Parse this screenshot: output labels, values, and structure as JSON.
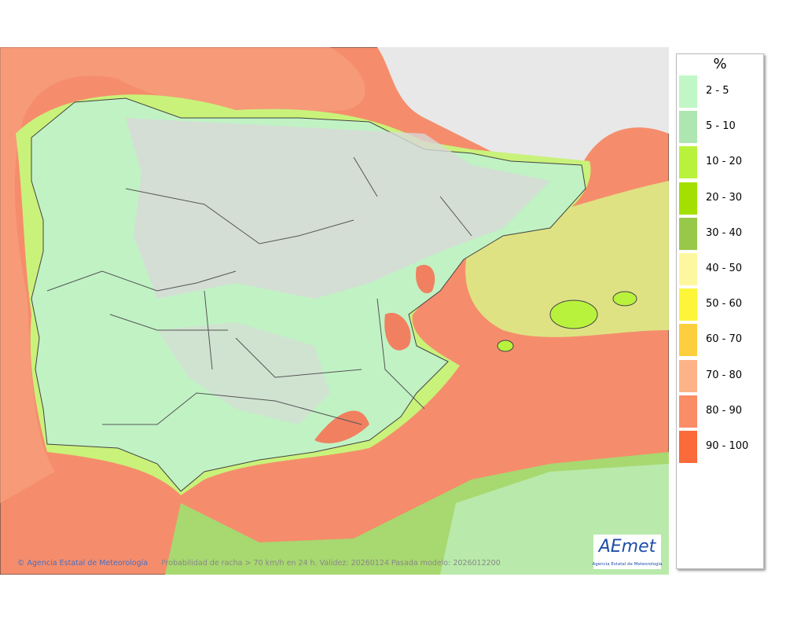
{
  "map": {
    "credit": "© Agencia Estatal de Meteorología",
    "caption": "Probabilidad de racha > 70 km/h en 24 h. Validez: 20260124 Pasada modelo: 2026012200"
  },
  "logo": {
    "text": "AEmet",
    "subtitle": "Agencia Estatal de Meteorología"
  },
  "legend": {
    "unit": "%",
    "items": [
      {
        "label": "2 - 5",
        "color": "#c1f7c6"
      },
      {
        "label": "5 - 10",
        "color": "#aee6b2"
      },
      {
        "label": "10 - 20",
        "color": "#b9f23c"
      },
      {
        "label": "20 - 30",
        "color": "#a3df00"
      },
      {
        "label": "30 - 40",
        "color": "#98c84a"
      },
      {
        "label": "40 - 50",
        "color": "#fdf8a0"
      },
      {
        "label": "50 - 60",
        "color": "#fdf53a"
      },
      {
        "label": "60 - 70",
        "color": "#fdcf3e"
      },
      {
        "label": "70 - 80",
        "color": "#fcb387"
      },
      {
        "label": "80 - 90",
        "color": "#fa8c66"
      },
      {
        "label": "90 - 100",
        "color": "#fb6a3a"
      }
    ]
  }
}
